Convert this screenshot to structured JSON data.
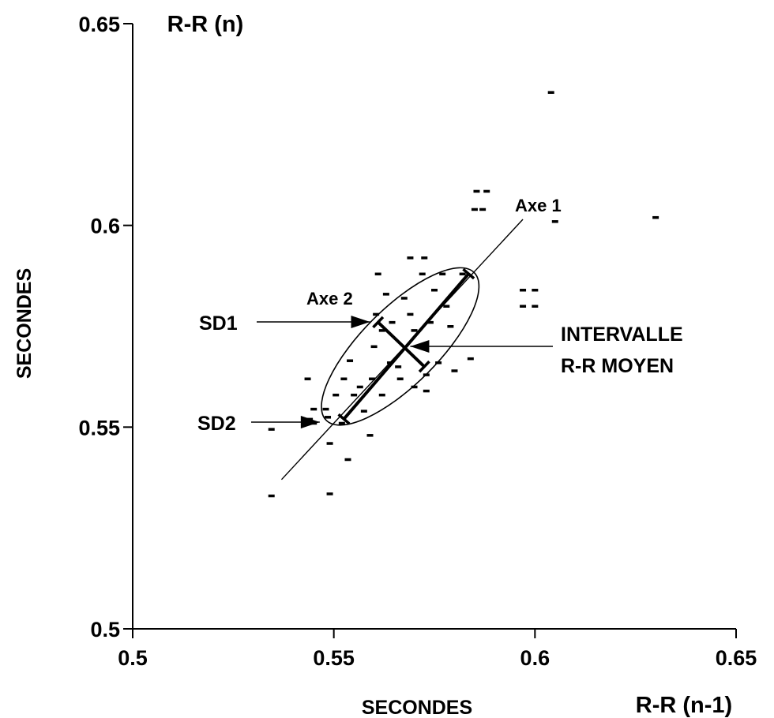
{
  "chart_data": {
    "type": "scatter",
    "title": "",
    "xlabel": "SECONDES",
    "ylabel": "SECONDES",
    "x_unit_label": "R-R (n-1)",
    "y_unit_label": "R-R (n)",
    "xlim": [
      0.5,
      0.65
    ],
    "ylim": [
      0.5,
      0.65
    ],
    "x_ticks": [
      "0.5",
      "0.55",
      "0.6",
      "0.65"
    ],
    "y_ticks": [
      "0.5",
      "0.55",
      "0.6",
      "0.65"
    ],
    "x_tick_values": [
      0.5,
      0.55,
      0.6,
      0.65
    ],
    "y_tick_values": [
      0.5,
      0.55,
      0.6,
      0.65
    ],
    "grid": false,
    "points": [
      [
        0.5345,
        0.533
      ],
      [
        0.5345,
        0.5495
      ],
      [
        0.5435,
        0.562
      ],
      [
        0.545,
        0.5545
      ],
      [
        0.544,
        0.552
      ],
      [
        0.545,
        0.551
      ],
      [
        0.548,
        0.5545
      ],
      [
        0.5485,
        0.5525
      ],
      [
        0.549,
        0.546
      ],
      [
        0.549,
        0.5335
      ],
      [
        0.5505,
        0.558
      ],
      [
        0.552,
        0.551
      ],
      [
        0.5525,
        0.562
      ],
      [
        0.5535,
        0.542
      ],
      [
        0.554,
        0.5665
      ],
      [
        0.555,
        0.558
      ],
      [
        0.5565,
        0.56
      ],
      [
        0.5575,
        0.554
      ],
      [
        0.559,
        0.548
      ],
      [
        0.5595,
        0.562
      ],
      [
        0.56,
        0.57
      ],
      [
        0.5605,
        0.578
      ],
      [
        0.561,
        0.588
      ],
      [
        0.562,
        0.574
      ],
      [
        0.562,
        0.558
      ],
      [
        0.563,
        0.583
      ],
      [
        0.564,
        0.566
      ],
      [
        0.5645,
        0.576
      ],
      [
        0.566,
        0.565
      ],
      [
        0.5665,
        0.562
      ],
      [
        0.5675,
        0.582
      ],
      [
        0.569,
        0.592
      ],
      [
        0.569,
        0.578
      ],
      [
        0.57,
        0.574
      ],
      [
        0.57,
        0.56
      ],
      [
        0.571,
        0.57
      ],
      [
        0.572,
        0.588
      ],
      [
        0.5725,
        0.592
      ],
      [
        0.573,
        0.563
      ],
      [
        0.573,
        0.559
      ],
      [
        0.574,
        0.576
      ],
      [
        0.575,
        0.584
      ],
      [
        0.576,
        0.566
      ],
      [
        0.577,
        0.588
      ],
      [
        0.578,
        0.58
      ],
      [
        0.579,
        0.575
      ],
      [
        0.58,
        0.564
      ],
      [
        0.582,
        0.588
      ],
      [
        0.584,
        0.567
      ],
      [
        0.585,
        0.604
      ],
      [
        0.5855,
        0.6085
      ],
      [
        0.587,
        0.604
      ],
      [
        0.588,
        0.6085
      ],
      [
        0.597,
        0.58
      ],
      [
        0.597,
        0.584
      ],
      [
        0.6,
        0.58
      ],
      [
        0.6,
        0.584
      ],
      [
        0.605,
        0.601
      ],
      [
        0.604,
        0.633
      ],
      [
        0.63,
        0.602
      ]
    ],
    "ellipse": {
      "center": [
        0.5665,
        0.57
      ],
      "semi_axis_1": 0.026,
      "semi_axis_2": 0.0095,
      "angle_deg": 45
    },
    "axis_line": [
      [
        0.537,
        0.537
      ],
      [
        0.597,
        0.6015
      ]
    ],
    "axis_segment_1": [
      [
        0.5525,
        0.552
      ],
      [
        0.5835,
        0.588
      ]
    ],
    "axis_segment_2": [
      [
        0.561,
        0.576
      ],
      [
        0.5725,
        0.565
      ]
    ],
    "mean_point": [
      0.5665,
      0.57
    ],
    "annotations": {
      "axe1": "Axe 1",
      "axe2": "Axe 2",
      "sd1": "SD1",
      "sd2": "SD2",
      "intervalle_line1": "INTERVALLE",
      "intervalle_line2": "R-R MOYEN"
    },
    "arrows": {
      "sd1_target": [
        0.559,
        0.576
      ],
      "sd2_target": [
        0.5465,
        0.5515
      ],
      "mean_target": [
        0.569,
        0.57
      ]
    }
  }
}
